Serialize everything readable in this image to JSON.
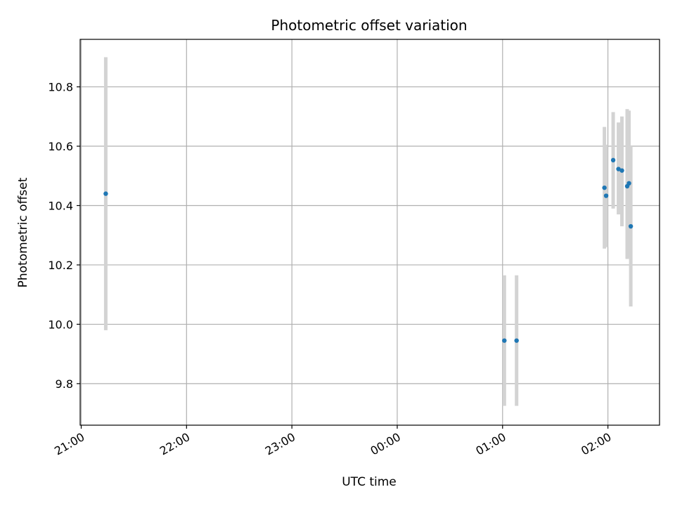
{
  "chart_data": {
    "type": "scatter",
    "title": "Photometric offset variation",
    "xlabel": "UTC time",
    "ylabel": "Photometric offset",
    "x_unit": "hours",
    "xlim": [
      -0.01,
      5.49
    ],
    "ylim": [
      9.66,
      10.96
    ],
    "x_ticks": [
      {
        "value": 0,
        "label": "21:00"
      },
      {
        "value": 1,
        "label": "22:00"
      },
      {
        "value": 2,
        "label": "23:00"
      },
      {
        "value": 3,
        "label": "00:00"
      },
      {
        "value": 4,
        "label": "01:00"
      },
      {
        "value": 5,
        "label": "02:00"
      }
    ],
    "y_ticks": [
      {
        "value": 9.8,
        "label": "9.8"
      },
      {
        "value": 10.0,
        "label": "10.0"
      },
      {
        "value": 10.2,
        "label": "10.2"
      },
      {
        "value": 10.4,
        "label": "10.4"
      },
      {
        "value": 10.6,
        "label": "10.6"
      },
      {
        "value": 10.8,
        "label": "10.8"
      }
    ],
    "grid": true,
    "colors": {
      "point": "#1f77b4",
      "errorbar": "#d3d3d3",
      "grid": "#b0b0b0"
    },
    "points": [
      {
        "x": 0.233,
        "y": 10.44,
        "err_low": 9.98,
        "err_high": 10.9
      },
      {
        "x": 4.017,
        "y": 9.945,
        "err_low": 9.725,
        "err_high": 10.165
      },
      {
        "x": 4.133,
        "y": 9.945,
        "err_low": 9.725,
        "err_high": 10.165
      },
      {
        "x": 4.967,
        "y": 10.46,
        "err_low": 10.255,
        "err_high": 10.665
      },
      {
        "x": 4.983,
        "y": 10.433,
        "err_low": 10.26,
        "err_high": 10.605
      },
      {
        "x": 5.05,
        "y": 10.553,
        "err_low": 10.39,
        "err_high": 10.715
      },
      {
        "x": 5.1,
        "y": 10.523,
        "err_low": 10.37,
        "err_high": 10.68
      },
      {
        "x": 5.133,
        "y": 10.518,
        "err_low": 10.33,
        "err_high": 10.7
      },
      {
        "x": 5.183,
        "y": 10.465,
        "err_low": 10.22,
        "err_high": 10.725
      },
      {
        "x": 5.2,
        "y": 10.475,
        "err_low": 10.225,
        "err_high": 10.72
      },
      {
        "x": 5.217,
        "y": 10.33,
        "err_low": 10.06,
        "err_high": 10.6
      }
    ]
  }
}
